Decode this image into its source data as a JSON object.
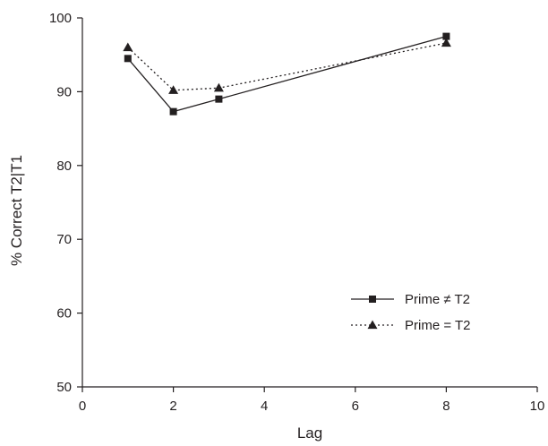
{
  "chart_data": {
    "type": "line",
    "title": "",
    "xlabel": "Lag",
    "ylabel": "% Correct T2|T1",
    "xlim": [
      0,
      10
    ],
    "ylim": [
      50,
      100
    ],
    "xticks": [
      0,
      2,
      4,
      6,
      8,
      10
    ],
    "yticks": [
      50,
      60,
      70,
      80,
      90,
      100
    ],
    "grid": false,
    "legend_position": "bottom-right",
    "series": [
      {
        "name": "Prime ≠ T2",
        "line_style": "solid",
        "marker": "square",
        "color": "#231f20",
        "x": [
          1,
          2,
          3,
          8
        ],
        "y": [
          94.5,
          87.3,
          89.0,
          97.5
        ]
      },
      {
        "name": "Prime = T2",
        "line_style": "dotted",
        "marker": "triangle",
        "color": "#231f20",
        "x": [
          1,
          2,
          3,
          8
        ],
        "y": [
          96.0,
          90.2,
          90.5,
          96.6
        ]
      }
    ]
  }
}
